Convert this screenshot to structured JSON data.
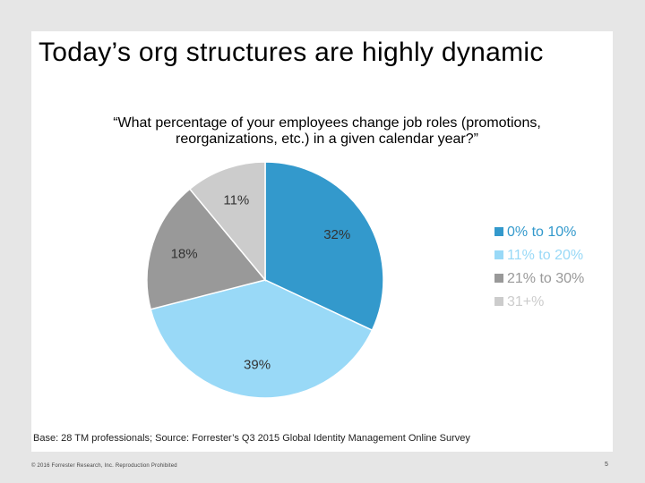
{
  "slide": {
    "title": "Today’s org structures are highly dynamic",
    "question": "“What percentage of your employees change job roles (promotions, reorganizations, etc.) in a given calendar year?”",
    "base_note": "Base: 28 TM professionals; Source: Forrester’s Q3 2015 Global Identity Management Online Survey",
    "copyright": "© 2016 Forrester Research, Inc. Reproduction Prohibited",
    "page_number": "5"
  },
  "chart_data": {
    "type": "pie",
    "categories": [
      "0% to 10%",
      "11% to 20%",
      "21% to 30%",
      "31+%"
    ],
    "values": [
      32,
      39,
      18,
      11
    ],
    "labels": [
      "32%",
      "39%",
      "18%",
      "11%"
    ],
    "colors": [
      "#3399cc",
      "#99d9f7",
      "#999999",
      "#cccccc"
    ],
    "legend_position": "right"
  }
}
